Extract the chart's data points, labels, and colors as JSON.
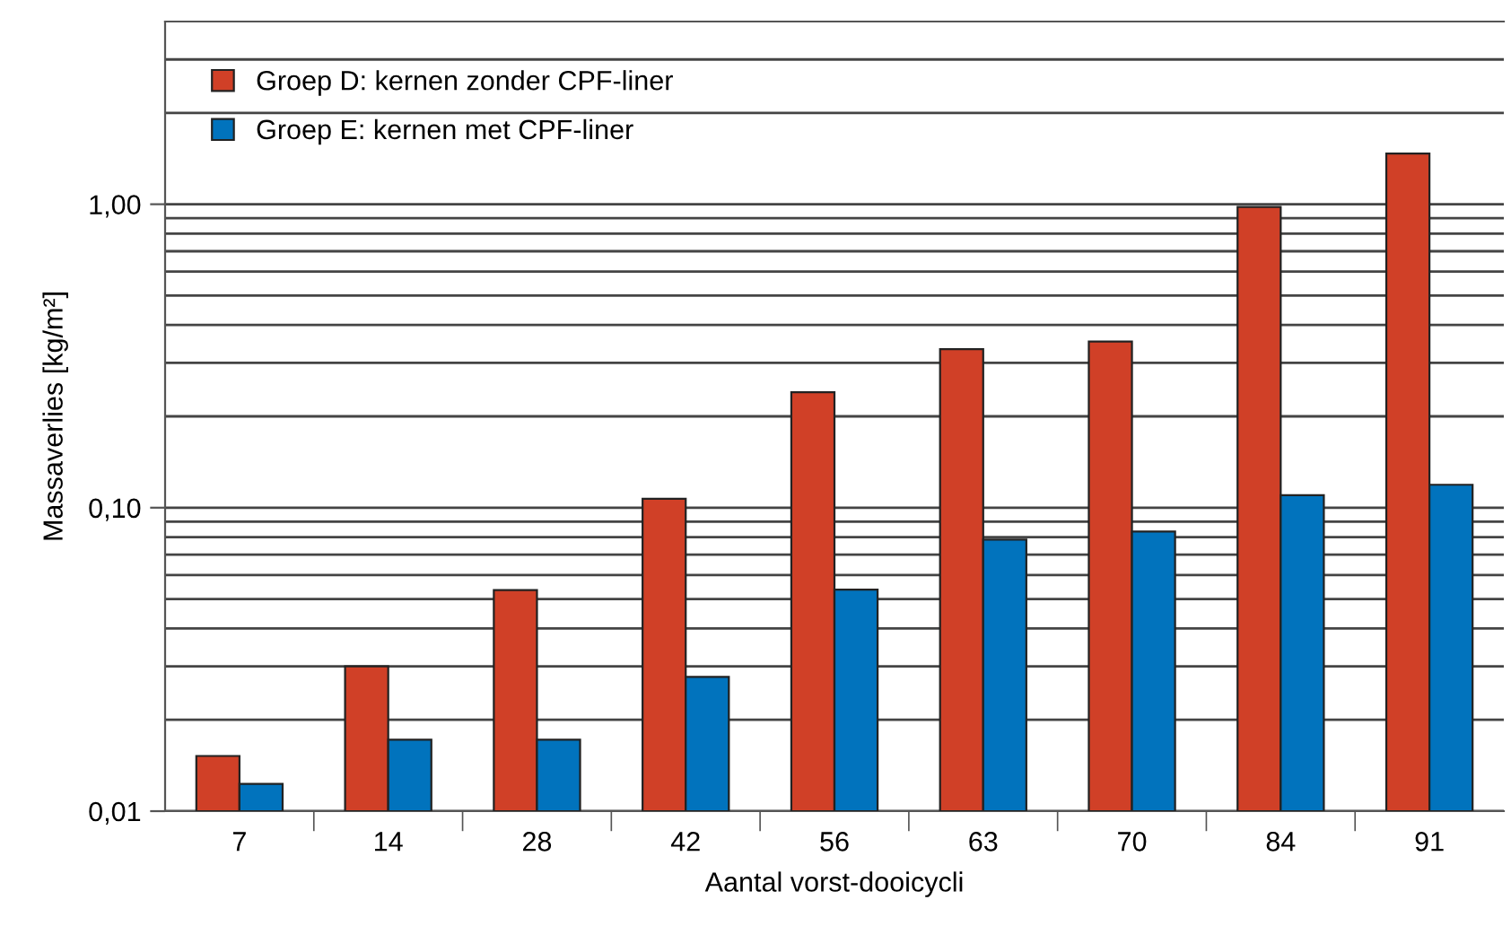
{
  "chart_data": {
    "type": "bar",
    "xlabel": "Aantal vorst-dooicycli",
    "ylabel": "Massaverlies [kg/m²]",
    "categories": [
      "7",
      "14",
      "28",
      "42",
      "56",
      "63",
      "70",
      "84",
      "91"
    ],
    "series": [
      {
        "name": "Groep D: kernen zonder CPF-liner",
        "color": "#d04027",
        "values": [
          0.0152,
          0.03,
          0.0535,
          0.107,
          0.24,
          0.333,
          0.353,
          0.98,
          1.47
        ]
      },
      {
        "name": "Groep E: kernen met CPF-liner",
        "color": "#0173bd",
        "values": [
          0.0123,
          0.0172,
          0.0172,
          0.0277,
          0.0537,
          0.0785,
          0.0834,
          0.11,
          0.119
        ]
      }
    ],
    "log": true,
    "ylim": [
      0.01,
      4
    ],
    "yticks": [
      {
        "value": 0.01,
        "label": "0,01"
      },
      {
        "value": 0.02,
        "label": null
      },
      {
        "value": 0.03,
        "label": null
      },
      {
        "value": 0.04,
        "label": null
      },
      {
        "value": 0.05,
        "label": null
      },
      {
        "value": 0.06,
        "label": null
      },
      {
        "value": 0.07,
        "label": null
      },
      {
        "value": 0.08,
        "label": null
      },
      {
        "value": 0.09,
        "label": null
      },
      {
        "value": 0.1,
        "label": "0,10"
      },
      {
        "value": 0.2,
        "label": null
      },
      {
        "value": 0.3,
        "label": null
      },
      {
        "value": 0.4,
        "label": null
      },
      {
        "value": 0.5,
        "label": null
      },
      {
        "value": 0.6,
        "label": null
      },
      {
        "value": 0.7,
        "label": null
      },
      {
        "value": 0.8,
        "label": null
      },
      {
        "value": 0.9,
        "label": null
      },
      {
        "value": 1,
        "label": "1,00"
      },
      {
        "value": 2,
        "label": null
      },
      {
        "value": 3,
        "label": null
      }
    ],
    "grid": "y",
    "legend": "top left"
  }
}
